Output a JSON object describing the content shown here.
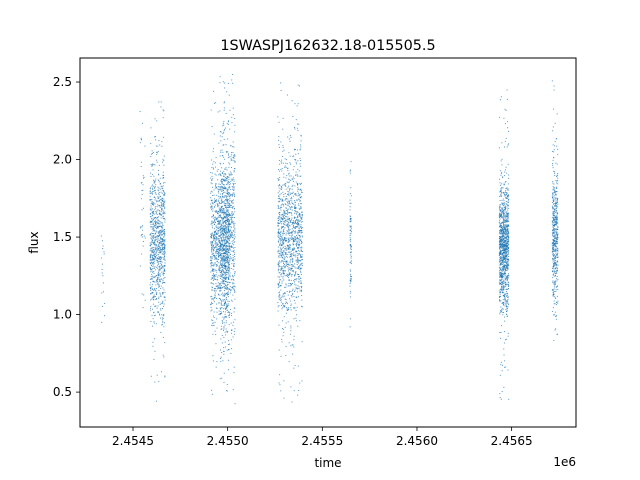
{
  "chart_data": {
    "type": "scatter",
    "title": "1SWASPJ162632.18-015505.5",
    "xlabel": "time",
    "ylabel": "flux",
    "x_offset_label": "1e6",
    "x_scale": 1000000,
    "xlim": [
      2.45422,
      2.45684
    ],
    "ylim": [
      0.275,
      2.655
    ],
    "x_ticks": [
      2.4545,
      2.455,
      2.4555,
      2.456,
      2.4565
    ],
    "x_tick_labels": [
      "2.4545",
      "2.4550",
      "2.4555",
      "2.4560",
      "2.4565"
    ],
    "y_ticks": [
      0.5,
      1.0,
      1.5,
      2.0,
      2.5
    ],
    "y_tick_labels": [
      "0.5",
      "1.0",
      "1.5",
      "2.0",
      "2.5"
    ],
    "grid": false,
    "marker_color": "#1f77b4",
    "series": [
      {
        "clusters": [
          {
            "x": 2.45434,
            "width": 2e-05,
            "center": 1.3,
            "spread": 0.22,
            "min": 0.8,
            "max": 1.52,
            "count": 18
          },
          {
            "x": 2.45455,
            "width": 3e-05,
            "center": 1.6,
            "spread": 0.35,
            "min": 1.0,
            "max": 2.4,
            "count": 40
          },
          {
            "x": 2.45463,
            "width": 8e-05,
            "center": 1.45,
            "spread": 0.25,
            "min": 0.4,
            "max": 2.4,
            "count": 900
          },
          {
            "x": 2.45496,
            "width": 0.0001,
            "center": 1.45,
            "spread": 0.25,
            "min": 0.45,
            "max": 2.5,
            "count": 1000
          },
          {
            "x": 2.455,
            "width": 8e-05,
            "center": 1.5,
            "spread": 0.3,
            "min": 0.4,
            "max": 2.55,
            "count": 800
          },
          {
            "x": 2.45533,
            "width": 0.00013,
            "center": 1.5,
            "spread": 0.25,
            "min": 0.4,
            "max": 2.5,
            "count": 1200
          },
          {
            "x": 2.45565,
            "width": 8e-06,
            "center": 1.45,
            "spread": 0.2,
            "min": 0.83,
            "max": 2.05,
            "count": 80
          },
          {
            "x": 2.45646,
            "width": 5e-05,
            "center": 1.42,
            "spread": 0.2,
            "min": 0.43,
            "max": 2.45,
            "count": 1100
          },
          {
            "x": 2.45673,
            "width": 3e-05,
            "center": 1.52,
            "spread": 0.22,
            "min": 0.78,
            "max": 2.52,
            "count": 500
          }
        ]
      }
    ]
  }
}
